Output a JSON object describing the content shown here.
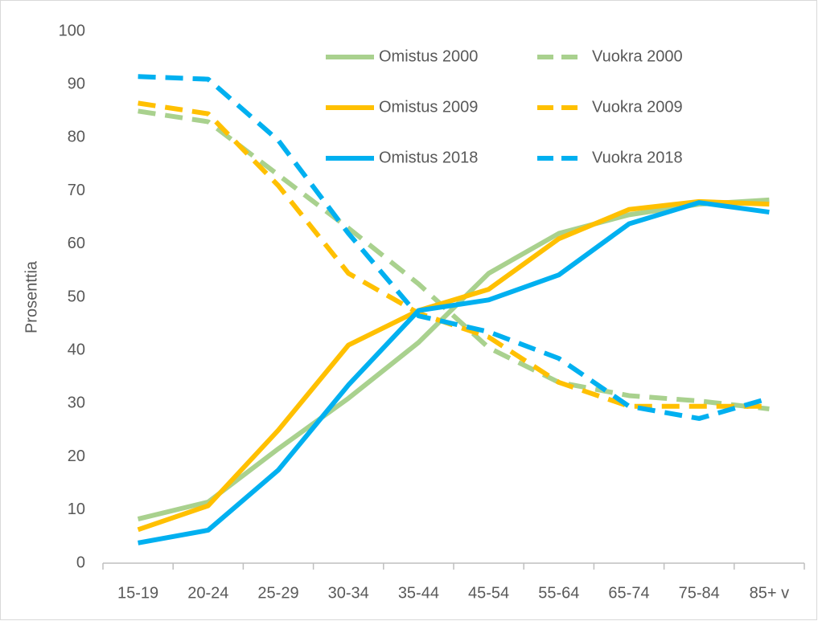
{
  "chart_data": {
    "type": "line",
    "y_label": "Prosenttia",
    "categories": [
      "15-19",
      "20-24",
      "25-29",
      "30-34",
      "35-44",
      "45-54",
      "55-64",
      "65-74",
      "75-84",
      "85+ v"
    ],
    "series": [
      {
        "name": "Omistus 2000",
        "color": "#a9d18e",
        "style": "solid",
        "values": [
          8.3,
          11.5,
          21.5,
          31,
          41.5,
          54.5,
          62,
          65.5,
          67.5,
          68.3
        ]
      },
      {
        "name": "Vuokra 2000",
        "color": "#a9d18e",
        "style": "dashed",
        "values": [
          85,
          83,
          73,
          63,
          52.5,
          40.5,
          34,
          31.5,
          30.5,
          29
        ]
      },
      {
        "name": "Omistus 2009",
        "color": "#ffc000",
        "style": "solid",
        "values": [
          6.3,
          10.8,
          25,
          41,
          47.5,
          51.5,
          61,
          66.5,
          68,
          67.5
        ]
      },
      {
        "name": "Vuokra 2009",
        "color": "#ffc000",
        "style": "dashed",
        "values": [
          86.5,
          84.5,
          71,
          54.5,
          47,
          42.5,
          34,
          29.5,
          29.5,
          29.5
        ]
      },
      {
        "name": "Omistus 2018",
        "color": "#00b0f0",
        "style": "solid",
        "values": [
          3.8,
          6.2,
          17.5,
          33.5,
          47.5,
          49.5,
          54.2,
          63.8,
          67.8,
          66
        ]
      },
      {
        "name": "Vuokra 2018",
        "color": "#00b0f0",
        "style": "dashed",
        "values": [
          91.5,
          91,
          79.5,
          62,
          46.5,
          43.5,
          38.5,
          29.5,
          27.2,
          31
        ]
      }
    ],
    "ylim": [
      0,
      100
    ],
    "yticks": [
      0,
      10,
      20,
      30,
      40,
      50,
      60,
      70,
      80,
      90,
      100
    ],
    "grid": false
  }
}
